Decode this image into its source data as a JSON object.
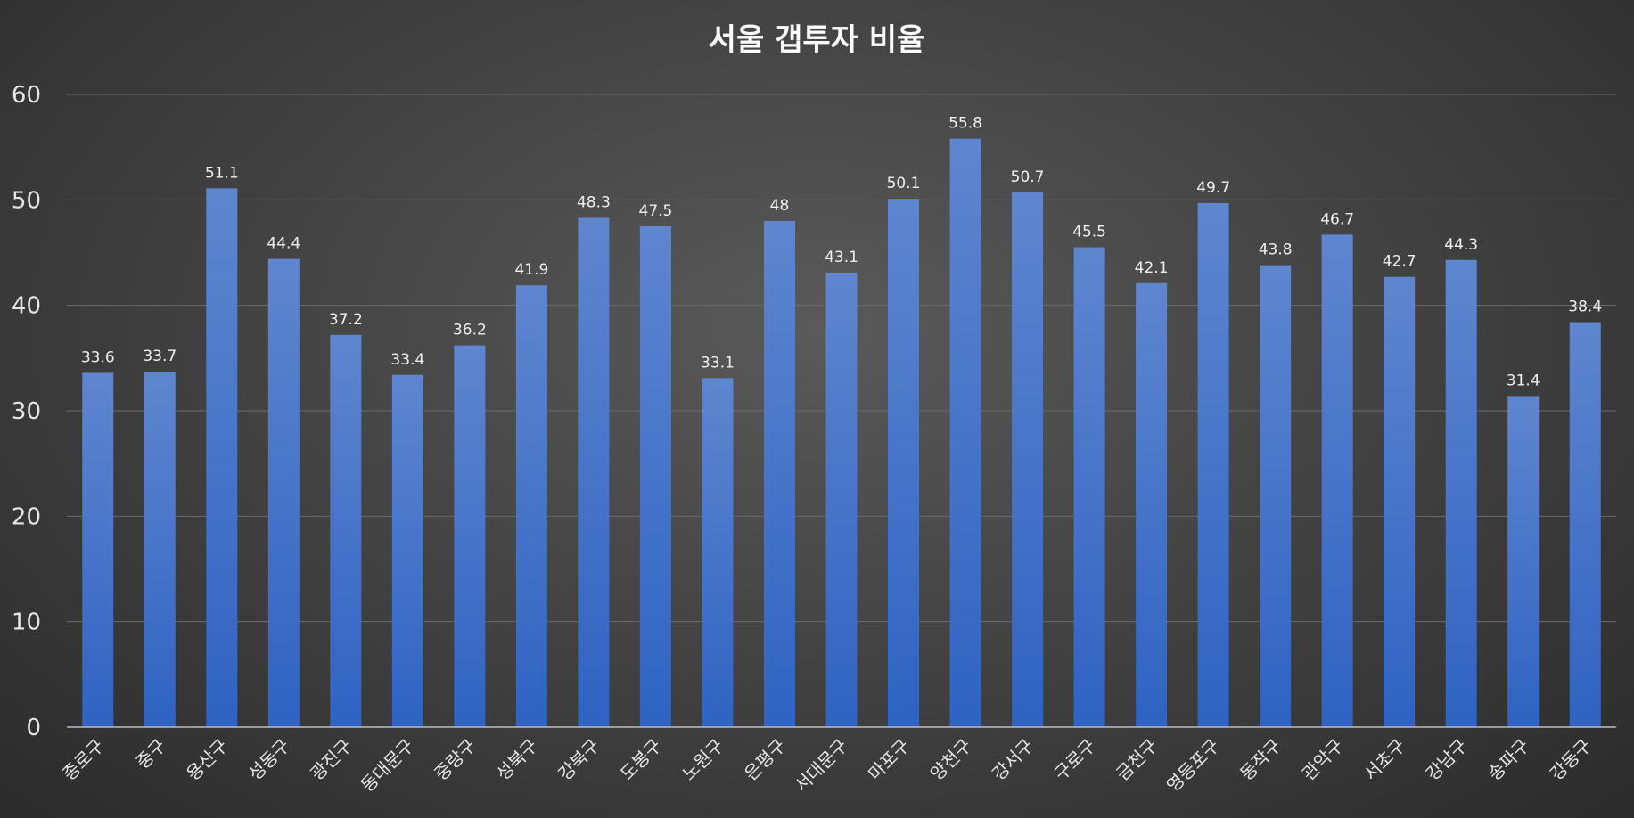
{
  "chart_data": {
    "type": "bar",
    "title": "서울 갭투자 비율",
    "xlabel": "",
    "ylabel": "",
    "ylim": [
      0,
      60
    ],
    "yticks": [
      0,
      10,
      20,
      30,
      40,
      50,
      60
    ],
    "grid": true,
    "legend": "none",
    "bar_color_top": "#5f86cf",
    "bar_color_bottom": "#2f63c2",
    "categories": [
      "종로구",
      "중구",
      "용산구",
      "성동구",
      "광진구",
      "동대문구",
      "중랑구",
      "성북구",
      "강북구",
      "도봉구",
      "노원구",
      "은평구",
      "서대문구",
      "마포구",
      "양천구",
      "강서구",
      "구로구",
      "금천구",
      "영등포구",
      "동작구",
      "관악구",
      "서초구",
      "강남구",
      "송파구",
      "강동구"
    ],
    "values": [
      33.6,
      33.7,
      51.1,
      44.4,
      37.2,
      33.4,
      36.2,
      41.9,
      48.3,
      47.5,
      33.1,
      48,
      43.1,
      50.1,
      55.8,
      50.7,
      45.5,
      42.1,
      49.7,
      43.8,
      46.7,
      42.7,
      44.3,
      31.4,
      38.4
    ]
  }
}
